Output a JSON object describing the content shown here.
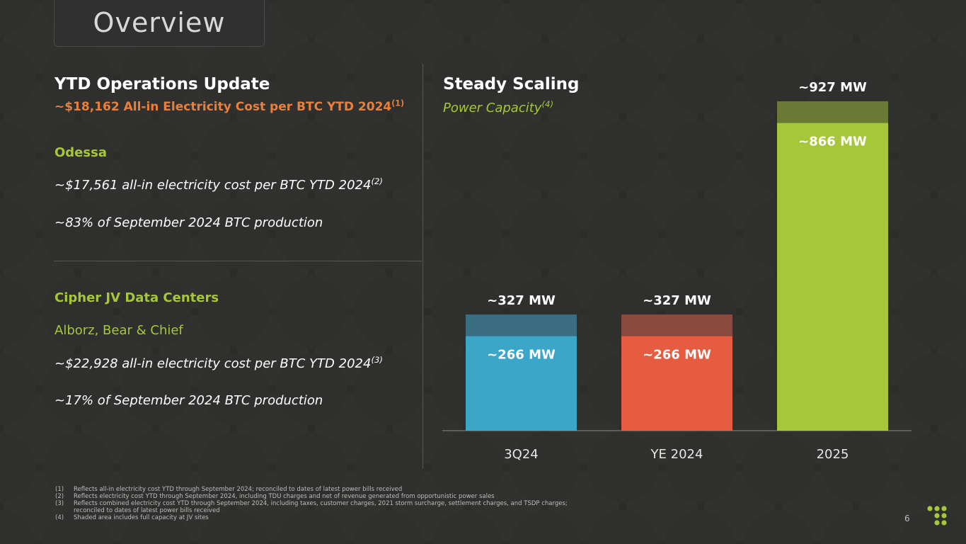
{
  "page": {
    "title": "Overview",
    "page_number": "6"
  },
  "left": {
    "heading": "YTD Operations Update",
    "subheading": "~$18,162 All-in Electricity Cost per BTC YTD 2024",
    "subheading_sup": "(1)",
    "odessa": {
      "label": "Odessa",
      "line1": "~$17,561 all-in electricity cost per BTC YTD 2024",
      "line1_sup": "(2)",
      "line2": "~83% of September 2024 BTC production"
    },
    "jv": {
      "label": "Cipher JV Data Centers",
      "sites": "Alborz, Bear & Chief",
      "line1": "~$22,928 all-in electricity cost per BTC YTD 2024",
      "line1_sup": "(3)",
      "line2": "~17% of September 2024 BTC production"
    }
  },
  "right": {
    "heading": "Steady Scaling",
    "subheading": "Power Capacity",
    "subheading_sup": "(4)"
  },
  "chart_data": {
    "type": "bar",
    "stacked": true,
    "categories": [
      "3Q24",
      "YE 2024",
      "2025"
    ],
    "series": [
      {
        "values": [
          266,
          266,
          866
        ]
      },
      {
        "values": [
          61,
          61,
          61
        ]
      }
    ],
    "data_labels_inner": [
      "~266 MW",
      "~266 MW",
      "~866 MW"
    ],
    "data_labels_total": [
      "~327 MW",
      "~327 MW",
      "~927 MW"
    ],
    "bar_colors": [
      "#3ca6c8",
      "#e55c40",
      "#a6c73a"
    ],
    "shade_colors": [
      "#3a6c82",
      "#8a4a3d",
      "#6a7a34"
    ],
    "ylim": [
      0,
      1000
    ],
    "grid": false,
    "legend": "none"
  },
  "footnotes": [
    {
      "num": "(1)",
      "text": "Reflects all-in electricity cost YTD through September 2024; reconciled to dates of latest power bills received"
    },
    {
      "num": "(2)",
      "text": "Reflects electricity cost YTD through September 2024, including TDU charges and net of revenue generated from opportunistic power sales"
    },
    {
      "num": "(3)",
      "text": "Reflects combined electricity cost YTD through September 2024, including taxes, customer charges, 2021 storm surcharge, settlement charges, and TSDP charges;"
    },
    {
      "num": "",
      "text": "reconciled to dates of latest power bills received"
    },
    {
      "num": "(4)",
      "text": "Shaded area includes full capacity at JV sites"
    }
  ]
}
